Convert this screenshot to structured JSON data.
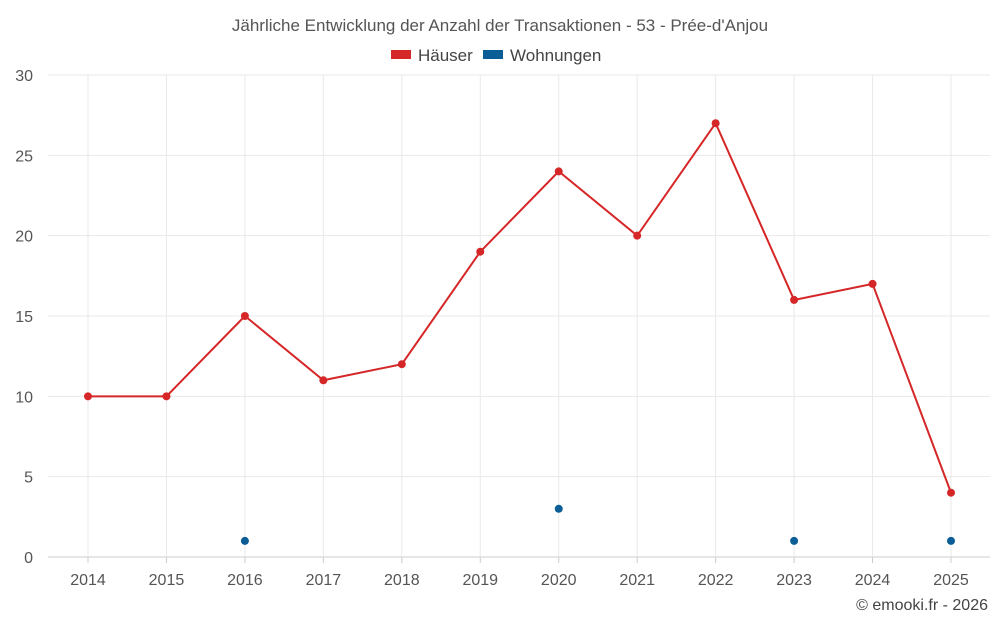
{
  "chart_data": {
    "type": "line",
    "title": "Jährliche Entwicklung der Anzahl der Transaktionen - 53 - Prée-d'Anjou",
    "xlabel": "",
    "ylabel": "",
    "categories": [
      "2014",
      "2015",
      "2016",
      "2017",
      "2018",
      "2019",
      "2020",
      "2021",
      "2022",
      "2023",
      "2024",
      "2025"
    ],
    "ylim": [
      0,
      30
    ],
    "yticks": [
      0,
      5,
      10,
      15,
      20,
      25,
      30
    ],
    "grid": true,
    "legend_position": "top-center",
    "series": [
      {
        "name": "Häuser",
        "color": "#d62728",
        "mode": "line+markers",
        "values": [
          10,
          10,
          15,
          11,
          12,
          19,
          24,
          20,
          27,
          16,
          17,
          4
        ]
      },
      {
        "name": "Wohnungen",
        "color": "#0b5e95",
        "mode": "markers",
        "values": [
          null,
          null,
          1,
          null,
          null,
          null,
          3,
          null,
          null,
          1,
          null,
          1
        ]
      }
    ]
  },
  "credit": "© emooki.fr - 2026"
}
